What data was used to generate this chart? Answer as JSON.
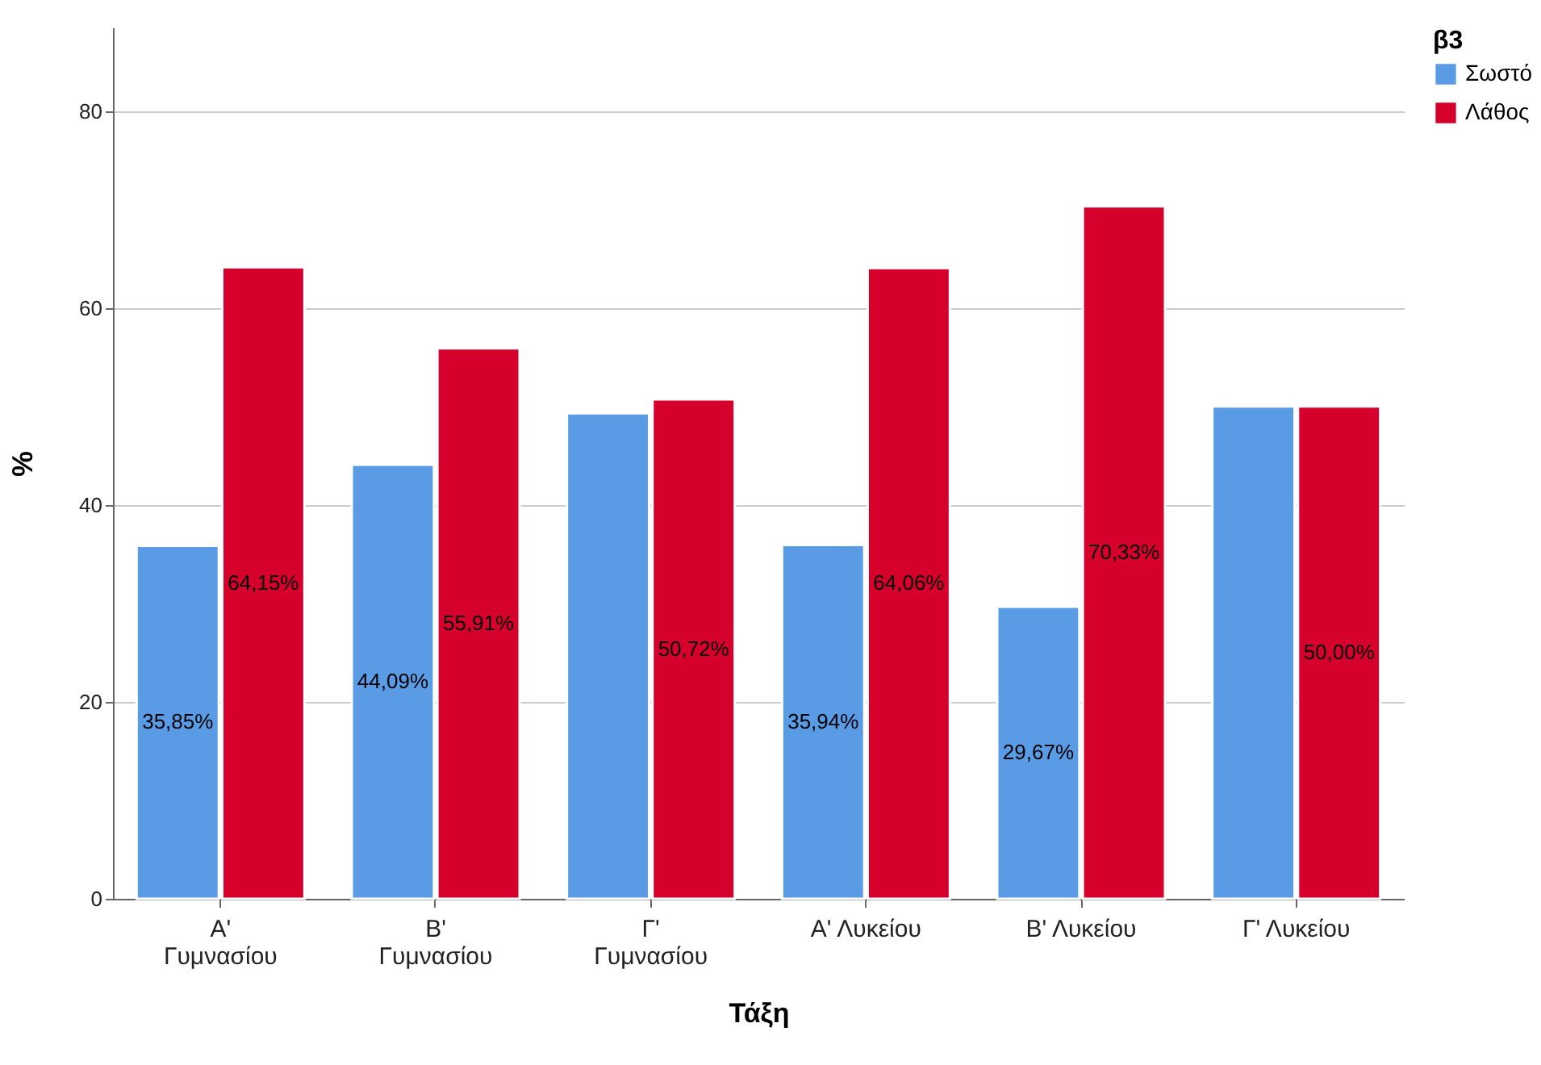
{
  "chart_data": {
    "type": "bar",
    "xlabel": "Τάξη",
    "ylabel": "%",
    "legend_title": "β3",
    "legend": "top right",
    "grid": "y",
    "categories": [
      "Α' Γυμνασίου",
      "Β' Γυμνασίου",
      "Γ' Γυμνασίου",
      "Α' Λυκείου",
      "Β' Λυκείου",
      "Γ' Λυκείου"
    ],
    "series": [
      {
        "name": "Σωστό",
        "color": "#5a9be6",
        "values": [
          35.85,
          44.09,
          49.3,
          35.94,
          29.67,
          50.0
        ],
        "value_labels": [
          "35,85%",
          "44,09%",
          null,
          "35,94%",
          "29,67%",
          null
        ]
      },
      {
        "name": "Λάθος",
        "color": "#d5002c",
        "values": [
          64.15,
          55.91,
          50.72,
          64.06,
          70.33,
          50.0
        ],
        "value_labels": [
          "64,15%",
          "55,91%",
          "50,72%",
          "64,06%",
          "70,33%",
          "50,00%"
        ]
      }
    ],
    "ylim": [
      0,
      88.5
    ],
    "yticks": [
      0,
      20,
      40,
      60,
      80
    ]
  }
}
